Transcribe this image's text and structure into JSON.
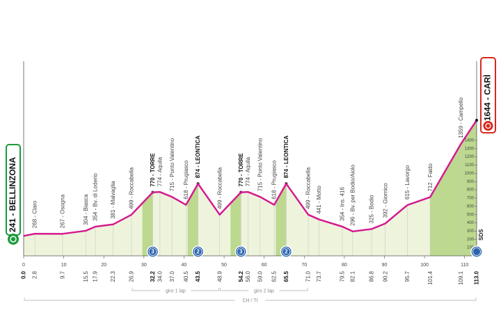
{
  "chart_data": {
    "type": "area",
    "start": {
      "km": {
        "value": 0,
        "label": "0.0"
      },
      "label": "241 - BELLINZONA"
    },
    "finish": {
      "km": {
        "value": 113,
        "label": "113.0"
      },
      "label": "1644 - CARÌ"
    },
    "x": [
      0,
      2.8,
      9.7,
      15.5,
      17.9,
      22.3,
      26.9,
      32.2,
      34,
      37,
      40.5,
      43.5,
      48.9,
      54.2,
      56,
      59,
      62.5,
      65.5,
      71,
      73.7,
      79.5,
      82.1,
      86.8,
      90.2,
      95.7,
      101.4,
      109.1,
      113
    ],
    "values": [
      241,
      268,
      267,
      304,
      354,
      381,
      499,
      770,
      774,
      715,
      618,
      874,
      499,
      770,
      774,
      715,
      618,
      874,
      499,
      441,
      354,
      296,
      325,
      392,
      615,
      712,
      1359,
      1644
    ],
    "line_color": "#d41b8f",
    "fill_color": "#eef4dc",
    "climb_color": "#bcd98f",
    "xlim": [
      0,
      113
    ],
    "ylim": [
      0,
      2360
    ],
    "xticks": [
      0,
      10,
      20,
      30,
      40,
      50,
      60,
      70,
      80,
      90,
      100,
      110
    ],
    "yticks": [
      100,
      200,
      300,
      400,
      500,
      600,
      700,
      800,
      900,
      1000,
      1100,
      1200,
      1300,
      1400
    ],
    "waypoints": [
      {
        "km": 2.8,
        "label": "268 - Claro"
      },
      {
        "km": 9.7,
        "label": "267 - Osogna"
      },
      {
        "km": 15.5,
        "label": "304 - Biasca"
      },
      {
        "km": 17.9,
        "label": "354 - Bv. di Loderio"
      },
      {
        "km": 22.3,
        "label": "381 - Malvaglia"
      },
      {
        "km": 26.9,
        "label": "499 - Roccabella"
      },
      {
        "km": 32.2,
        "label": "770 - TORRE",
        "bold": true
      },
      {
        "km": {
          "value": 34,
          "label": "34.0"
        },
        "label": "774 - Aquila"
      },
      {
        "km": {
          "value": 37,
          "label": "37.0"
        },
        "label": "715 - Ponto Valentino"
      },
      {
        "km": 40.5,
        "label": "618 - Prugiasco"
      },
      {
        "km": 43.5,
        "label": "874 - LEONTICA",
        "bold": true
      },
      {
        "km": 48.9,
        "label": "499 - Roccabella"
      },
      {
        "km": 54.2,
        "label": "770 - TORRE",
        "bold": true
      },
      {
        "km": {
          "value": 56,
          "label": "56.0"
        },
        "label": "774 - Aquila"
      },
      {
        "km": {
          "value": 59,
          "label": "59.0"
        },
        "label": "715 - Ponto Valentino"
      },
      {
        "km": 62.5,
        "label": "618 - Prugiasco"
      },
      {
        "km": 65.5,
        "label": "874 - LEONTICA",
        "bold": true
      },
      {
        "km": {
          "value": 71,
          "label": "71.0"
        },
        "label": "499 - Roccabella"
      },
      {
        "km": 73.7,
        "label": "441 - Motto"
      },
      {
        "km": 79.5,
        "label": "354 - Ins. 416"
      },
      {
        "km": 82.1,
        "label": "296 - Bv. per Bodio/Aiolo"
      },
      {
        "km": 86.8,
        "label": "325 - Bodio"
      },
      {
        "km": 90.2,
        "label": "392 - Giornico"
      },
      {
        "km": 95.7,
        "label": "615 - Lavorgo"
      },
      {
        "km": 101.4,
        "label": "712 - Faido"
      },
      {
        "km": 109.1,
        "label": "1359 - Campello"
      }
    ],
    "climbs": [
      {
        "start": 29.6,
        "end": 32.2,
        "category": "3"
      },
      {
        "start": 40.9,
        "end": 43.5,
        "category": "2"
      },
      {
        "start": 51.6,
        "end": 54.2,
        "category": "3"
      },
      {
        "start": 62.9,
        "end": 65.5,
        "category": "2"
      },
      {
        "start": 101.4,
        "end": 113
      }
    ],
    "laps": [
      {
        "start": 26.9,
        "end": 48.9,
        "label": "giro 1 lap"
      },
      {
        "start": 48.9,
        "end": 71,
        "label": "giro 2 lap"
      }
    ],
    "region": {
      "start": 0,
      "end": 113,
      "label": "CH / TI"
    },
    "mark": "SDS"
  }
}
